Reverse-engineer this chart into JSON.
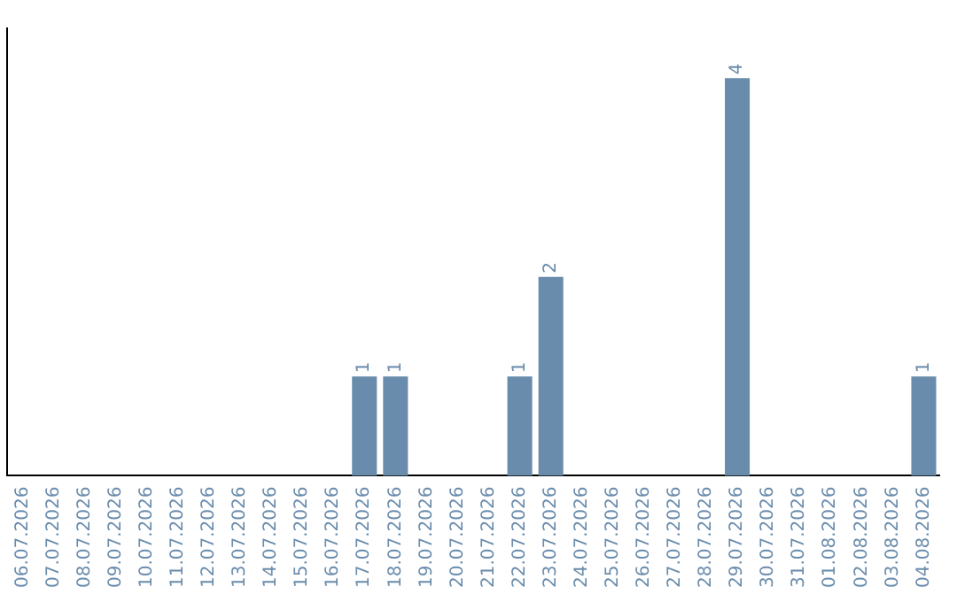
{
  "chart_data": {
    "type": "bar",
    "categories": [
      "06.07.2026",
      "07.07.2026",
      "08.07.2026",
      "09.07.2026",
      "10.07.2026",
      "11.07.2026",
      "12.07.2026",
      "13.07.2026",
      "14.07.2026",
      "15.07.2026",
      "16.07.2026",
      "17.07.2026",
      "18.07.2026",
      "19.07.2026",
      "20.07.2026",
      "21.07.2026",
      "22.07.2026",
      "23.07.2026",
      "24.07.2026",
      "25.07.2026",
      "26.07.2026",
      "27.07.2026",
      "28.07.2026",
      "29.07.2026",
      "30.07.2026",
      "31.07.2026",
      "01.08.2026",
      "02.08.2026",
      "03.08.2026",
      "04.08.2026"
    ],
    "values": [
      0,
      0,
      0,
      0,
      0,
      0,
      0,
      0,
      0,
      0,
      0,
      1,
      1,
      0,
      0,
      0,
      1,
      2,
      0,
      0,
      0,
      0,
      0,
      4,
      0,
      0,
      0,
      0,
      0,
      1
    ],
    "value_labels": [
      null,
      null,
      null,
      null,
      null,
      null,
      null,
      null,
      null,
      null,
      null,
      "1",
      "1",
      null,
      null,
      null,
      "1",
      "2",
      null,
      null,
      null,
      null,
      null,
      "4",
      null,
      null,
      null,
      null,
      null,
      "1"
    ],
    "color": "#6a8cac",
    "tick_labels": "x",
    "grid": false,
    "legend": false
  }
}
